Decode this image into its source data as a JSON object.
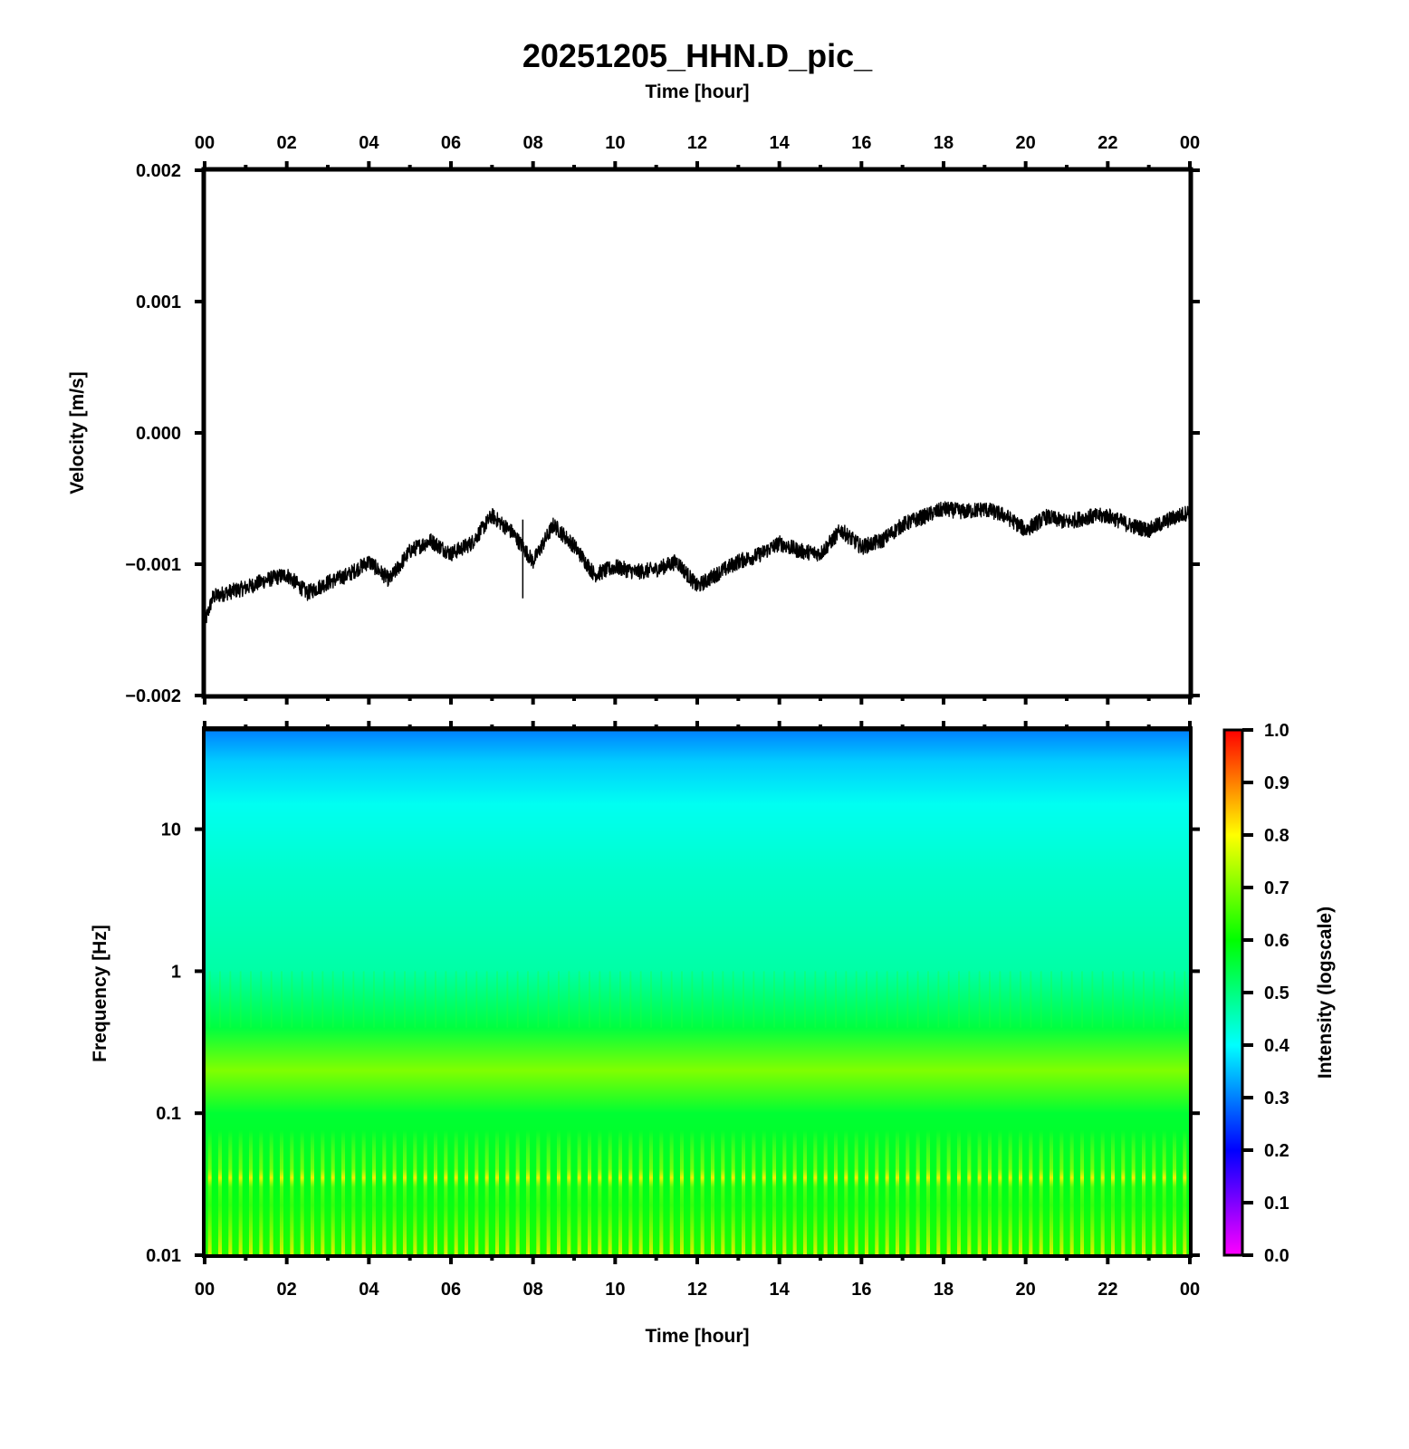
{
  "title": "20251205_HHN.D_pic_",
  "top_xlabel": "Time [hour]",
  "bottom_xlabel": "Time [hour]",
  "chart_data": [
    {
      "type": "line",
      "name": "velocity-trace",
      "ylabel": "Velocity [m/s]",
      "xlabel": "Time [hour]",
      "xlim": [
        0,
        24
      ],
      "ylim": [
        -0.002,
        0.002
      ],
      "x_tick_labels": [
        "00",
        "02",
        "04",
        "06",
        "08",
        "10",
        "12",
        "14",
        "16",
        "18",
        "20",
        "22",
        "00"
      ],
      "y_ticks": [
        {
          "value": 0.002,
          "label": "0.002"
        },
        {
          "value": 0.001,
          "label": "0.001"
        },
        {
          "value": 0.0,
          "label": "0.000"
        },
        {
          "value": -0.001,
          "label": "−0.001"
        },
        {
          "value": -0.002,
          "label": "−0.002"
        }
      ],
      "series": [
        {
          "name": "HHN",
          "color": "#000000",
          "x": [
            0,
            0.2,
            0.5,
            1,
            1.5,
            2,
            2.5,
            3,
            3.5,
            4,
            4.5,
            5,
            5.5,
            6,
            6.5,
            7,
            7.5,
            8,
            8.5,
            9,
            9.5,
            10,
            10.5,
            11,
            11.5,
            12,
            12.5,
            13,
            13.5,
            14,
            14.5,
            15,
            15.5,
            16,
            16.5,
            17,
            17.5,
            18,
            18.5,
            19,
            19.5,
            20,
            20.5,
            21,
            21.5,
            22,
            22.5,
            23,
            23.5,
            24
          ],
          "values": [
            -0.00145,
            -0.00125,
            -0.00122,
            -0.00118,
            -0.00112,
            -0.00108,
            -0.00122,
            -0.00114,
            -0.00108,
            -0.00098,
            -0.00112,
            -0.0009,
            -0.00082,
            -0.00092,
            -0.00084,
            -0.00063,
            -0.00076,
            -0.00098,
            -0.0007,
            -0.00086,
            -0.00108,
            -0.00102,
            -0.00106,
            -0.00104,
            -0.00098,
            -0.00117,
            -0.00107,
            -0.00098,
            -0.00093,
            -0.00084,
            -0.0009,
            -0.00092,
            -0.00074,
            -0.00087,
            -0.00082,
            -0.0007,
            -0.00064,
            -0.00058,
            -0.0006,
            -0.00058,
            -0.00063,
            -0.00074,
            -0.00064,
            -0.00068,
            -0.00064,
            -0.00063,
            -0.0007,
            -0.00074,
            -0.00066,
            -0.0006
          ],
          "noise_amplitude": 6e-05
        }
      ]
    },
    {
      "type": "heatmap",
      "name": "spectrogram",
      "ylabel": "Frequency [Hz]",
      "xlabel": "Time [hour]",
      "xlim": [
        0,
        24
      ],
      "ylim": [
        0.01,
        50
      ],
      "yscale": "log",
      "x_tick_labels": [
        "00",
        "02",
        "04",
        "06",
        "08",
        "10",
        "12",
        "14",
        "16",
        "18",
        "20",
        "22",
        "00"
      ],
      "y_ticks": [
        {
          "value": 0.01,
          "label": "0.01"
        },
        {
          "value": 0.1,
          "label": "0.1"
        },
        {
          "value": 1,
          "label": "1"
        },
        {
          "value": 10,
          "label": "10"
        }
      ],
      "intensity_profile": [
        {
          "freq": 50,
          "intensity": 0.3
        },
        {
          "freq": 30,
          "intensity": 0.36
        },
        {
          "freq": 15,
          "intensity": 0.41
        },
        {
          "freq": 5,
          "intensity": 0.44
        },
        {
          "freq": 1,
          "intensity": 0.47
        },
        {
          "freq": 0.4,
          "intensity": 0.55
        },
        {
          "freq": 0.2,
          "intensity": 0.7
        },
        {
          "freq": 0.1,
          "intensity": 0.56
        },
        {
          "freq": 0.03,
          "intensity": 0.58
        },
        {
          "freq": 0.01,
          "intensity": 0.62
        }
      ],
      "periodic_stripes_per_day": 96,
      "colorbar": {
        "label": "Intensity (logscale)",
        "range": [
          0.0,
          1.0
        ],
        "tick_labels": [
          "0.0",
          "0.1",
          "0.2",
          "0.3",
          "0.4",
          "0.5",
          "0.6",
          "0.7",
          "0.8",
          "0.9",
          "1.0"
        ],
        "colors": [
          "#ff00ff",
          "#0000ff",
          "#00ffff",
          "#00ff00",
          "#ffff00",
          "#ff0000"
        ]
      }
    }
  ]
}
